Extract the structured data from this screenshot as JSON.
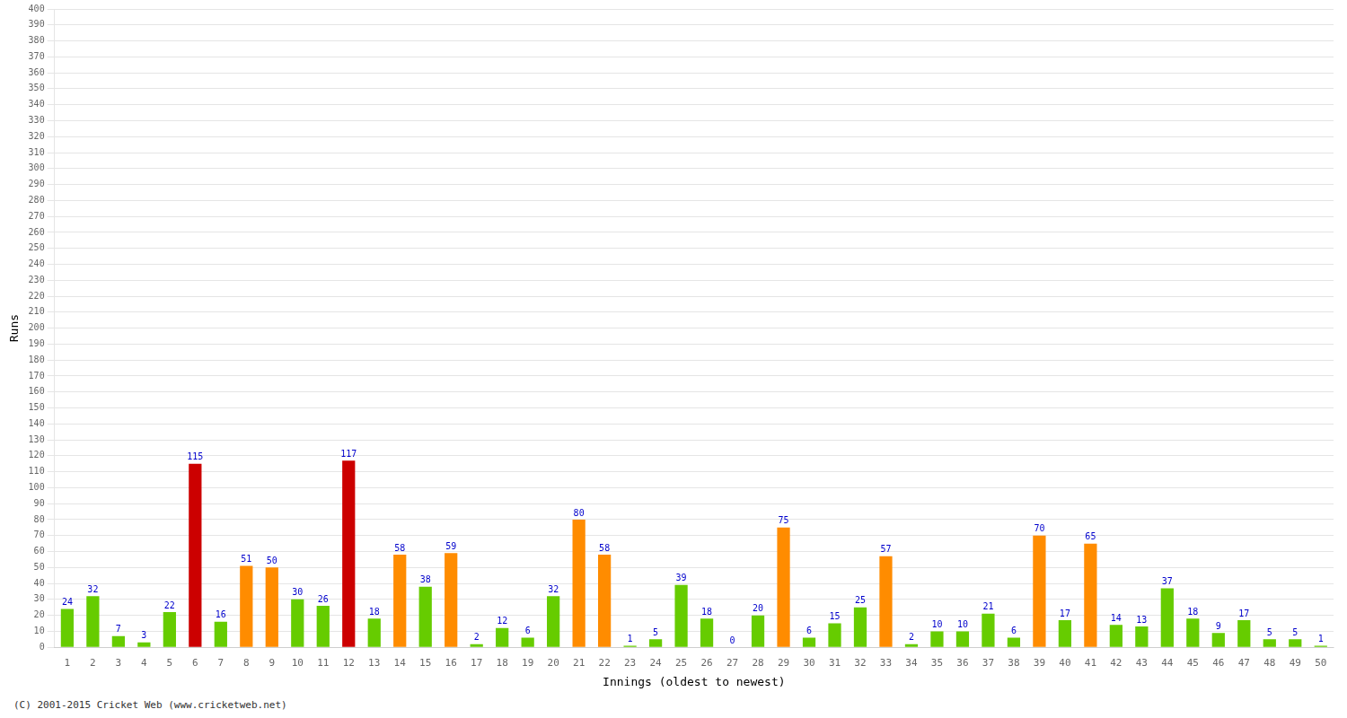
{
  "chart_data": {
    "type": "bar",
    "xlabel": "Innings (oldest to newest)",
    "ylabel": "Runs",
    "categories": [
      "1",
      "2",
      "3",
      "4",
      "5",
      "6",
      "7",
      "8",
      "9",
      "10",
      "11",
      "12",
      "13",
      "14",
      "15",
      "16",
      "17",
      "18",
      "19",
      "20",
      "21",
      "22",
      "23",
      "24",
      "25",
      "26",
      "27",
      "28",
      "29",
      "30",
      "31",
      "32",
      "33",
      "34",
      "35",
      "36",
      "37",
      "38",
      "39",
      "40",
      "41",
      "42",
      "43",
      "44",
      "45",
      "46",
      "47",
      "48",
      "49",
      "50"
    ],
    "values": [
      24,
      32,
      7,
      3,
      22,
      115,
      16,
      51,
      50,
      30,
      26,
      117,
      18,
      58,
      38,
      59,
      2,
      12,
      6,
      32,
      80,
      58,
      1,
      5,
      39,
      18,
      0,
      20,
      75,
      6,
      15,
      25,
      57,
      2,
      10,
      10,
      21,
      6,
      70,
      17,
      65,
      14,
      13,
      37,
      18,
      9,
      17,
      5,
      5,
      1
    ],
    "colors": [
      "#66cc00",
      "#66cc00",
      "#66cc00",
      "#66cc00",
      "#66cc00",
      "#cc0000",
      "#66cc00",
      "#ff8c00",
      "#ff8c00",
      "#66cc00",
      "#66cc00",
      "#cc0000",
      "#66cc00",
      "#ff8c00",
      "#66cc00",
      "#ff8c00",
      "#66cc00",
      "#66cc00",
      "#66cc00",
      "#66cc00",
      "#ff8c00",
      "#ff8c00",
      "#66cc00",
      "#66cc00",
      "#66cc00",
      "#66cc00",
      "#66cc00",
      "#66cc00",
      "#ff8c00",
      "#66cc00",
      "#66cc00",
      "#66cc00",
      "#ff8c00",
      "#66cc00",
      "#66cc00",
      "#66cc00",
      "#66cc00",
      "#66cc00",
      "#ff8c00",
      "#66cc00",
      "#ff8c00",
      "#66cc00",
      "#66cc00",
      "#66cc00",
      "#66cc00",
      "#66cc00",
      "#66cc00",
      "#66cc00",
      "#66cc00",
      "#66cc00"
    ],
    "ylim": [
      0,
      400
    ],
    "yticks": [
      0,
      10,
      20,
      30,
      40,
      50,
      60,
      70,
      80,
      90,
      100,
      110,
      120,
      130,
      140,
      150,
      160,
      170,
      180,
      190,
      200,
      210,
      220,
      230,
      240,
      250,
      260,
      270,
      280,
      290,
      300,
      310,
      320,
      330,
      340,
      350,
      360,
      370,
      380,
      390,
      400
    ],
    "grid": true,
    "data_labels": true,
    "annotations": [
      "(C) 2001-2015 Cricket Web (www.cricketweb.net)"
    ]
  }
}
